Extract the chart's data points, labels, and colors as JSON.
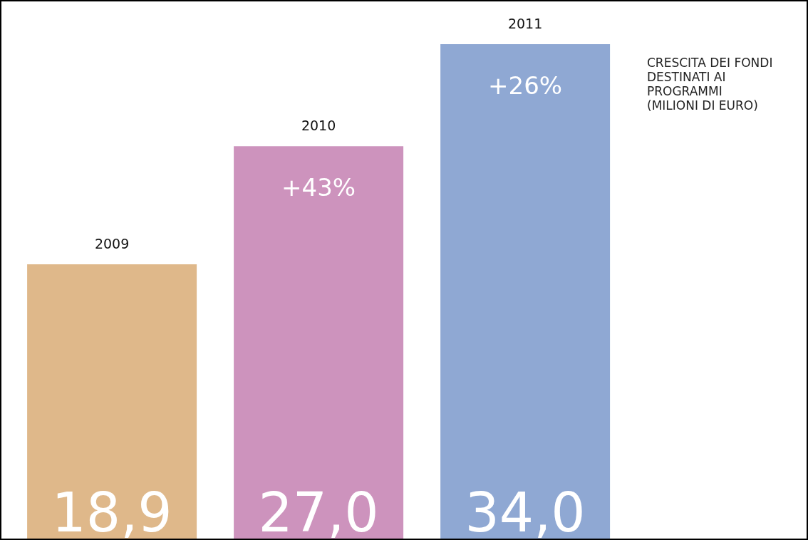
{
  "chart_data": {
    "type": "bar",
    "title": "CRESCITA DEI FONDI DESTINATI AI PROGRAMMI (MILIONI DI EURO)",
    "categories": [
      "2009",
      "2010",
      "2011"
    ],
    "values": [
      18.9,
      27.0,
      34.0
    ],
    "colors": [
      "#dfb88a",
      "#cd93bd",
      "#8fa8d3"
    ],
    "value_labels": [
      "18,9",
      "27,0",
      "34,0"
    ],
    "annotations": [
      "+43%",
      "+26%"
    ]
  }
}
